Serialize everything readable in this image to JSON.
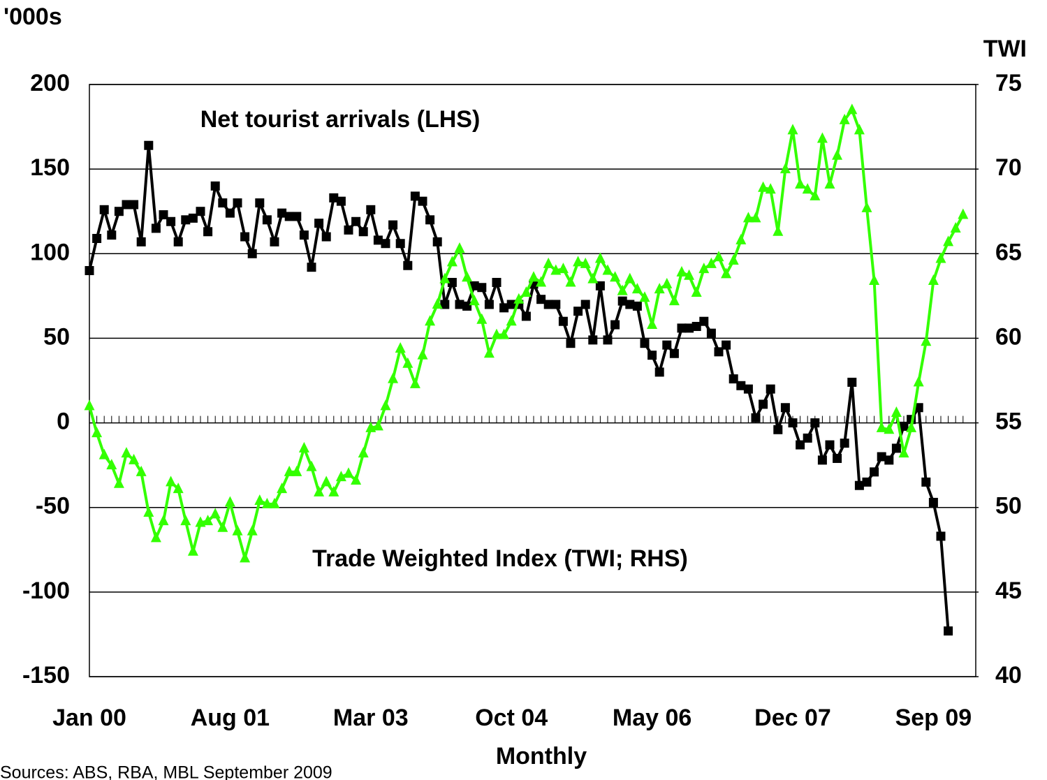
{
  "chart_data": {
    "type": "line",
    "y_label": "'000s",
    "y2_label": "TWI",
    "x_label": "Monthly",
    "source": "Sources: ABS, RBA, MBL September 2009",
    "categories": [
      "Jan 00",
      null,
      null,
      null,
      null,
      null,
      null,
      null,
      null,
      null,
      null,
      null,
      null,
      null,
      null,
      null,
      null,
      null,
      null,
      "Aug 01",
      null,
      null,
      null,
      null,
      null,
      null,
      null,
      null,
      null,
      null,
      null,
      null,
      null,
      null,
      null,
      null,
      null,
      null,
      "Mar 03",
      null,
      null,
      null,
      null,
      null,
      null,
      null,
      null,
      null,
      null,
      null,
      null,
      null,
      null,
      null,
      null,
      null,
      null,
      "Oct 04",
      null,
      null,
      null,
      null,
      null,
      null,
      null,
      null,
      null,
      null,
      null,
      null,
      null,
      null,
      null,
      null,
      null,
      null,
      "May 06",
      null,
      null,
      null,
      null,
      null,
      null,
      null,
      null,
      null,
      null,
      null,
      null,
      null,
      null,
      null,
      null,
      null,
      null,
      "Dec 07",
      null,
      null,
      null,
      null,
      null,
      null,
      null,
      null,
      null,
      null,
      null,
      null,
      null,
      null,
      null,
      null,
      null,
      null,
      "Sep 09",
      null,
      null,
      null,
      null
    ],
    "ylim": [
      -150,
      200
    ],
    "yticks": [
      -150,
      -100,
      -50,
      0,
      50,
      100,
      150,
      200
    ],
    "y2lim": [
      40,
      75
    ],
    "y2ticks": [
      40,
      45,
      50,
      55,
      60,
      65,
      70,
      75
    ],
    "grid": true,
    "series": [
      {
        "name": "Net tourist arrivals (LHS)",
        "color": "#000000",
        "marker": "square",
        "values": [
          90,
          109,
          126,
          111,
          125,
          129,
          129,
          107,
          164,
          115,
          123,
          119,
          107,
          120,
          121,
          125,
          113,
          140,
          130,
          124,
          130,
          110,
          100,
          130,
          120,
          107,
          124,
          122,
          122,
          111,
          92,
          118,
          110,
          133,
          131,
          114,
          119,
          113,
          126,
          108,
          106,
          117,
          106,
          93,
          134,
          131,
          120,
          107,
          70,
          83,
          70,
          69,
          81,
          80,
          70,
          83,
          68,
          70,
          70,
          63,
          82,
          73,
          70,
          70,
          60,
          47,
          66,
          70,
          49,
          81,
          49,
          58,
          72,
          70,
          69,
          47,
          40,
          30,
          46,
          41,
          56,
          56,
          57,
          60,
          53,
          42,
          46,
          26,
          22,
          20,
          3,
          11,
          20,
          -4,
          9,
          0,
          -13,
          -9,
          0,
          -22,
          -13,
          -21,
          -12,
          24,
          -37,
          -35,
          -29,
          -20,
          -22,
          -15,
          -2,
          2,
          9,
          -35,
          -47,
          -67,
          -123,
          null,
          null
        ]
      },
      {
        "name": "Trade Weighted Index (TWI; RHS)",
        "color": "#33ff00",
        "marker": "triangle",
        "axis": "y2",
        "values": [
          56.0,
          54.4,
          53.1,
          52.5,
          51.4,
          53.2,
          52.8,
          52.1,
          49.7,
          48.2,
          49.2,
          51.5,
          51.1,
          49.2,
          47.4,
          49.1,
          49.2,
          49.6,
          48.8,
          50.3,
          48.6,
          47.0,
          48.6,
          50.4,
          50.2,
          50.2,
          51.1,
          52.1,
          52.1,
          53.5,
          52.4,
          50.9,
          51.5,
          50.9,
          51.8,
          52.0,
          51.6,
          53.2,
          54.7,
          54.8,
          56.0,
          57.6,
          59.4,
          58.5,
          57.3,
          59.0,
          61.0,
          62.0,
          63.5,
          64.5,
          65.3,
          63.6,
          62.2,
          61.1,
          59.1,
          60.2,
          60.2,
          61.0,
          62.3,
          62.7,
          63.6,
          63.3,
          64.4,
          64.0,
          64.1,
          63.3,
          64.5,
          64.4,
          63.5,
          64.7,
          64.0,
          63.6,
          62.8,
          63.5,
          62.9,
          62.4,
          60.8,
          62.9,
          63.2,
          62.2,
          63.9,
          63.7,
          62.7,
          64.1,
          64.4,
          64.8,
          63.8,
          64.6,
          65.8,
          67.1,
          67.1,
          68.9,
          68.8,
          66.3,
          70.0,
          72.3,
          69.1,
          68.8,
          68.4,
          71.8,
          69.1,
          70.8,
          72.9,
          73.5,
          72.3,
          67.7,
          63.4,
          54.7,
          54.6,
          55.6,
          53.2,
          54.7,
          57.4,
          59.8,
          63.4,
          64.7,
          65.7,
          66.5,
          67.3
        ]
      }
    ]
  }
}
